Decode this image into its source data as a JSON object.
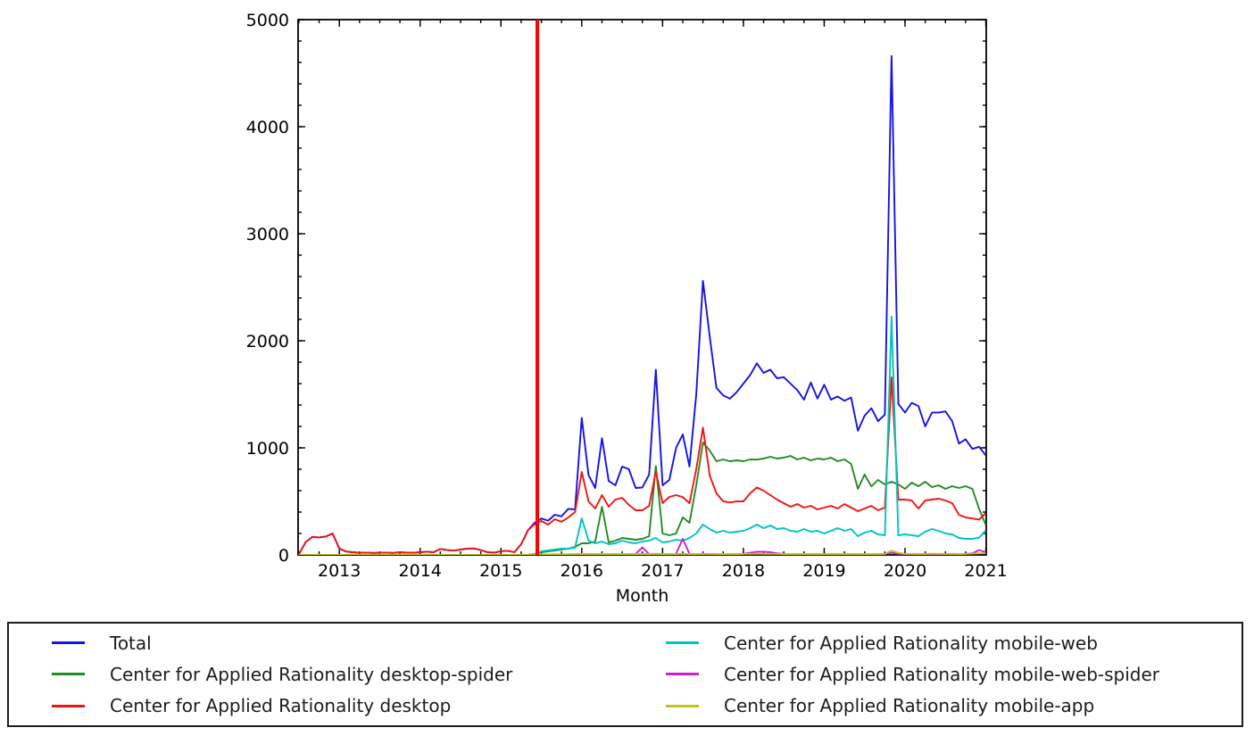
{
  "chart_data": {
    "type": "line",
    "title": "",
    "xlabel": "Month",
    "ylabel": "",
    "x_start": "2012-07",
    "x_end": "2021-01",
    "x_tick_labels": [
      "2013",
      "2014",
      "2015",
      "2016",
      "2017",
      "2018",
      "2019",
      "2020",
      "2021"
    ],
    "x_tick_years": [
      2013,
      2014,
      2015,
      2016,
      2017,
      2018,
      2019,
      2020,
      2021
    ],
    "y_tick_labels": [
      "0",
      "1000",
      "2000",
      "3000",
      "4000",
      "5000"
    ],
    "y_tick_values": [
      0,
      1000,
      2000,
      3000,
      4000,
      5000
    ],
    "ylim": [
      0,
      5000
    ],
    "xlim": [
      2012.49,
      2021.005
    ],
    "grid": "off",
    "legend_position": "bottom",
    "vline": {
      "x": 2015.45,
      "color": "#ff0000",
      "width": 4,
      "name": "pageviews-api-start-marker"
    },
    "series": [
      {
        "name": "Total",
        "color": "#1414e8",
        "values": [
          5,
          120,
          168,
          163,
          172,
          200,
          60,
          32,
          25,
          20,
          22,
          18,
          20,
          22,
          18,
          25,
          22,
          20,
          25,
          30,
          25,
          55,
          45,
          40,
          50,
          58,
          60,
          45,
          25,
          22,
          35,
          38,
          25,
          100,
          230,
          300,
          340,
          320,
          375,
          360,
          430,
          425,
          1280,
          745,
          625,
          1090,
          690,
          650,
          825,
          800,
          625,
          630,
          750,
          1730,
          650,
          700,
          1000,
          1125,
          825,
          1500,
          2560,
          2040,
          1560,
          1490,
          1460,
          1520,
          1600,
          1680,
          1790,
          1700,
          1730,
          1650,
          1660,
          1600,
          1540,
          1450,
          1610,
          1460,
          1590,
          1450,
          1480,
          1440,
          1470,
          1160,
          1300,
          1370,
          1250,
          1310,
          4660,
          1410,
          1330,
          1420,
          1390,
          1200,
          1330,
          1330,
          1340,
          1250,
          1040,
          1080,
          990,
          1010,
          930
        ]
      },
      {
        "name": "Center for Applied Rationality desktop-spider",
        "color": "#228b22",
        "values": [
          0,
          0,
          0,
          0,
          0,
          0,
          0,
          0,
          0,
          0,
          0,
          0,
          0,
          0,
          0,
          0,
          0,
          0,
          0,
          0,
          0,
          0,
          0,
          0,
          0,
          0,
          0,
          0,
          0,
          0,
          0,
          0,
          0,
          0,
          0,
          8,
          25,
          33,
          42,
          50,
          58,
          75,
          108,
          108,
          125,
          450,
          117,
          133,
          158,
          150,
          142,
          150,
          175,
          830,
          200,
          183,
          200,
          350,
          300,
          650,
          1050,
          975,
          875,
          892,
          875,
          883,
          875,
          892,
          890,
          900,
          917,
          900,
          908,
          925,
          892,
          908,
          883,
          900,
          892,
          908,
          875,
          892,
          850,
          617,
          750,
          640,
          700,
          658,
          683,
          658,
          617,
          675,
          642,
          683,
          633,
          650,
          617,
          642,
          625,
          642,
          617,
          430,
          280
        ]
      },
      {
        "name": "Center for Applied Rationality desktop",
        "color": "#ee1515",
        "values": [
          5,
          120,
          168,
          163,
          172,
          200,
          60,
          32,
          25,
          20,
          22,
          18,
          20,
          22,
          18,
          25,
          22,
          20,
          25,
          30,
          25,
          55,
          45,
          40,
          50,
          58,
          60,
          45,
          25,
          22,
          35,
          38,
          25,
          100,
          230,
          285,
          317,
          283,
          333,
          310,
          350,
          400,
          775,
          500,
          433,
          558,
          450,
          517,
          533,
          467,
          417,
          417,
          458,
          780,
          483,
          542,
          558,
          540,
          483,
          800,
          1190,
          740,
          575,
          500,
          490,
          500,
          500,
          575,
          630,
          600,
          558,
          517,
          483,
          450,
          475,
          442,
          458,
          425,
          442,
          458,
          433,
          475,
          442,
          408,
          433,
          458,
          417,
          442,
          1658,
          517,
          517,
          508,
          433,
          508,
          517,
          525,
          508,
          483,
          375,
          350,
          340,
          330,
          390
        ]
      },
      {
        "name": "Center for Applied Rationality mobile-web",
        "color": "#00c3c3",
        "values": [
          0,
          0,
          0,
          0,
          0,
          0,
          0,
          0,
          0,
          0,
          0,
          0,
          0,
          0,
          0,
          0,
          0,
          0,
          0,
          0,
          0,
          0,
          0,
          0,
          0,
          0,
          0,
          0,
          0,
          0,
          0,
          0,
          0,
          0,
          0,
          8,
          33,
          42,
          50,
          58,
          58,
          67,
          342,
          133,
          108,
          125,
          100,
          108,
          133,
          117,
          108,
          125,
          133,
          158,
          117,
          125,
          142,
          133,
          158,
          200,
          283,
          242,
          208,
          225,
          208,
          217,
          225,
          250,
          283,
          250,
          275,
          242,
          250,
          225,
          217,
          242,
          217,
          225,
          200,
          225,
          250,
          225,
          242,
          175,
          208,
          225,
          192,
          183,
          2225,
          183,
          192,
          183,
          175,
          217,
          242,
          225,
          200,
          192,
          158,
          150,
          150,
          160,
          230
        ]
      },
      {
        "name": "Center for Applied Rationality mobile-web-spider",
        "color": "#cf1ecf",
        "values": [
          0,
          0,
          0,
          0,
          0,
          0,
          0,
          0,
          0,
          0,
          0,
          0,
          0,
          0,
          0,
          0,
          0,
          0,
          0,
          0,
          0,
          0,
          0,
          0,
          0,
          0,
          0,
          0,
          0,
          0,
          0,
          0,
          0,
          0,
          0,
          2,
          3,
          3,
          4,
          5,
          5,
          6,
          8,
          8,
          8,
          8,
          8,
          8,
          8,
          8,
          8,
          70,
          8,
          10,
          8,
          8,
          10,
          150,
          10,
          8,
          8,
          8,
          8,
          8,
          8,
          8,
          10,
          20,
          30,
          30,
          25,
          15,
          10,
          8,
          8,
          8,
          8,
          8,
          8,
          8,
          8,
          8,
          8,
          8,
          8,
          8,
          8,
          8,
          20,
          10,
          8,
          8,
          8,
          8,
          8,
          8,
          8,
          8,
          8,
          10,
          15,
          45,
          25
        ]
      },
      {
        "name": "Center for Applied Rationality mobile-app",
        "color": "#c3c31e",
        "values": [
          0,
          0,
          0,
          0,
          0,
          0,
          0,
          0,
          0,
          0,
          0,
          0,
          0,
          0,
          0,
          0,
          0,
          0,
          0,
          0,
          0,
          0,
          0,
          0,
          0,
          0,
          0,
          0,
          0,
          0,
          0,
          0,
          0,
          0,
          0,
          3,
          5,
          5,
          6,
          6,
          6,
          8,
          8,
          8,
          8,
          8,
          8,
          8,
          8,
          8,
          8,
          8,
          8,
          10,
          8,
          8,
          8,
          10,
          8,
          8,
          10,
          10,
          8,
          8,
          8,
          8,
          10,
          10,
          12,
          10,
          10,
          10,
          8,
          8,
          8,
          8,
          8,
          8,
          8,
          8,
          8,
          8,
          8,
          8,
          8,
          8,
          8,
          10,
          40,
          20,
          10,
          10,
          8,
          10,
          12,
          10,
          10,
          10,
          8,
          10,
          12,
          15,
          15
        ]
      }
    ]
  },
  "legend": {
    "items": [
      {
        "label": "Total"
      },
      {
        "label": "Center for Applied Rationality desktop-spider"
      },
      {
        "label": "Center for Applied Rationality desktop"
      },
      {
        "label": "Center for Applied Rationality mobile-web"
      },
      {
        "label": "Center for Applied Rationality mobile-web-spider"
      },
      {
        "label": "Center for Applied Rationality mobile-app"
      }
    ]
  }
}
